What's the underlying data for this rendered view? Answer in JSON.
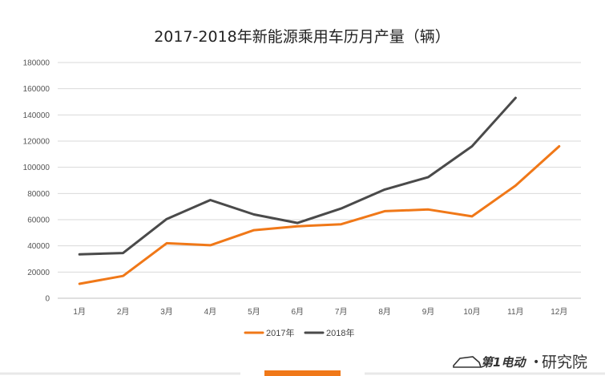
{
  "chart_data": {
    "type": "line",
    "title": "2017-2018年新能源乘用车历月产量（辆）",
    "xlabel": "",
    "ylabel": "",
    "categories": [
      "1月",
      "2月",
      "3月",
      "4月",
      "5月",
      "6月",
      "7月",
      "8月",
      "9月",
      "10月",
      "11月",
      "12月"
    ],
    "ylim": [
      0,
      180000
    ],
    "yticks": [
      0,
      20000,
      40000,
      60000,
      80000,
      100000,
      120000,
      140000,
      160000,
      180000
    ],
    "ytick_labels": [
      "0",
      "20000",
      "40000",
      "60000",
      "80000",
      "100000",
      "120000",
      "140000",
      "160000",
      "180000"
    ],
    "grid": true,
    "legend_position": "bottom",
    "series": [
      {
        "name": "2017年",
        "color": "#f07818",
        "values": [
          11000,
          17000,
          42000,
          40500,
          52000,
          55000,
          56500,
          66500,
          67800,
          62500,
          86000,
          116000
        ]
      },
      {
        "name": "2018年",
        "color": "#4a4a4a",
        "values": [
          33500,
          34500,
          60500,
          75000,
          64000,
          57500,
          68500,
          83000,
          92500,
          116000,
          153000,
          null
        ]
      }
    ]
  },
  "brand": {
    "logo_text": "第1电动",
    "separator": "•",
    "name": "研究院"
  },
  "colors": {
    "accent": "#f07818",
    "dark": "#4a4a4a",
    "grid": "#d9d9d9"
  }
}
